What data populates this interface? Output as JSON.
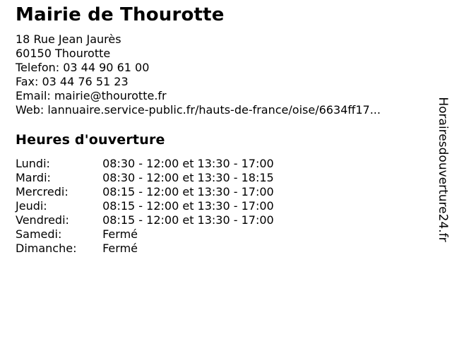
{
  "page": {
    "background_color": "#ffffff",
    "text_color": "#000000"
  },
  "header": {
    "title": "Mairie de Thourotte"
  },
  "contact": {
    "lines": [
      "18 Rue Jean Jaurès",
      "60150 Thourotte",
      "Telefon: 03 44 90 61 00",
      "Fax: 03 44 76 51 23",
      "Email: mairie@thourotte.fr",
      "Web: lannuaire.service-public.fr/hauts-de-france/oise/6634ff17..."
    ]
  },
  "hours": {
    "heading": "Heures d'ouverture",
    "rows": [
      {
        "day": "Lundi:",
        "time": "08:30 - 12:00 et 13:30 - 17:00"
      },
      {
        "day": "Mardi:",
        "time": "08:30 - 12:00 et 13:30 - 18:15"
      },
      {
        "day": "Mercredi:",
        "time": "08:15 - 12:00 et 13:30 - 17:00"
      },
      {
        "day": "Jeudi:",
        "time": "08:15 - 12:00 et 13:30 - 17:00"
      },
      {
        "day": "Vendredi:",
        "time": "08:15 - 12:00 et 13:30 - 17:00"
      },
      {
        "day": "Samedi:",
        "time": "Fermé"
      },
      {
        "day": "Dimanche:",
        "time": "Fermé"
      }
    ]
  },
  "watermark": {
    "text": "Horairesdouverture24.fr"
  }
}
